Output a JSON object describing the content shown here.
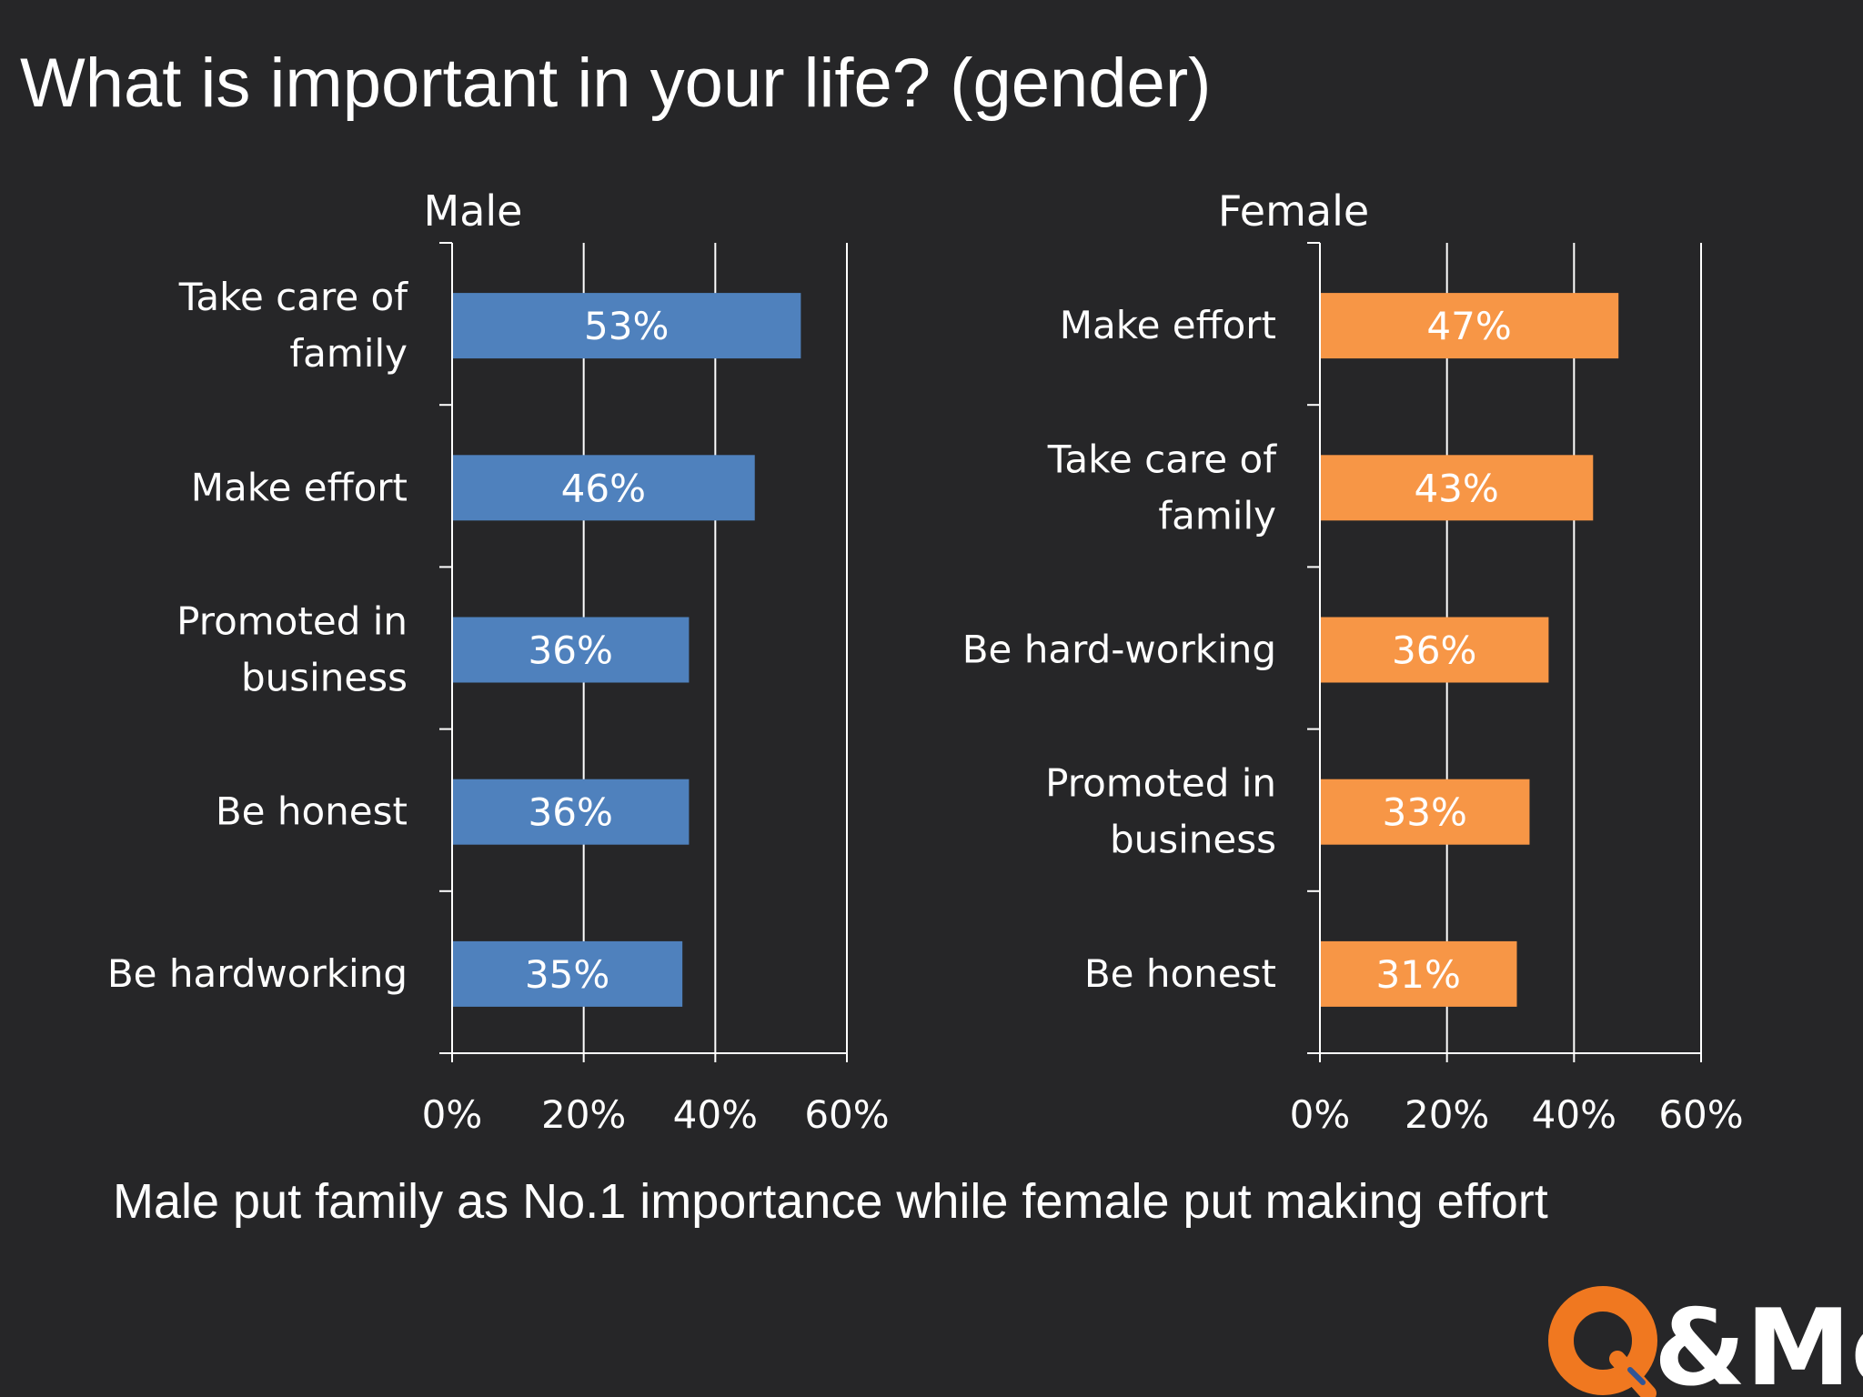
{
  "slide": {
    "title": "What is important in your life? (gender)",
    "caption": "Male put family as No.1 importance while female put making effort",
    "logo_text": "Q&Me"
  },
  "colors": {
    "background": "#262628",
    "male_bar": "#4f81bd",
    "female_bar": "#f79646",
    "logo_orange": "#f07820",
    "logo_blue": "#2f5597"
  },
  "chart_data": [
    {
      "type": "bar",
      "orientation": "horizontal",
      "title": "Male",
      "categories": [
        "Take care of family",
        "Make effort",
        "Promoted in business",
        "Be honest",
        "Be hardworking"
      ],
      "category_lines": [
        [
          "Take care of",
          "family"
        ],
        [
          "Make effort"
        ],
        [
          "Promoted in",
          "business"
        ],
        [
          "Be honest"
        ],
        [
          "Be hardworking"
        ]
      ],
      "values": [
        53,
        46,
        36,
        36,
        35
      ],
      "data_labels": [
        "53%",
        "46%",
        "36%",
        "36%",
        "35%"
      ],
      "xlim": [
        0,
        60
      ],
      "xticks": [
        0,
        20,
        40,
        60
      ],
      "xtick_labels": [
        "0%",
        "20%",
        "40%",
        "60%"
      ],
      "grid": true,
      "color": "#4f81bd"
    },
    {
      "type": "bar",
      "orientation": "horizontal",
      "title": "Female",
      "categories": [
        "Make effort",
        "Take care of family",
        "Be hard-working",
        "Promoted in business",
        "Be honest"
      ],
      "category_lines": [
        [
          "Make effort"
        ],
        [
          "Take care of",
          "family"
        ],
        [
          "Be hard-working"
        ],
        [
          "Promoted in",
          "business"
        ],
        [
          "Be honest"
        ]
      ],
      "values": [
        47,
        43,
        36,
        33,
        31
      ],
      "data_labels": [
        "47%",
        "43%",
        "36%",
        "33%",
        "31%"
      ],
      "xlim": [
        0,
        60
      ],
      "xticks": [
        0,
        20,
        40,
        60
      ],
      "xtick_labels": [
        "0%",
        "20%",
        "40%",
        "60%"
      ],
      "grid": true,
      "color": "#f79646"
    }
  ]
}
